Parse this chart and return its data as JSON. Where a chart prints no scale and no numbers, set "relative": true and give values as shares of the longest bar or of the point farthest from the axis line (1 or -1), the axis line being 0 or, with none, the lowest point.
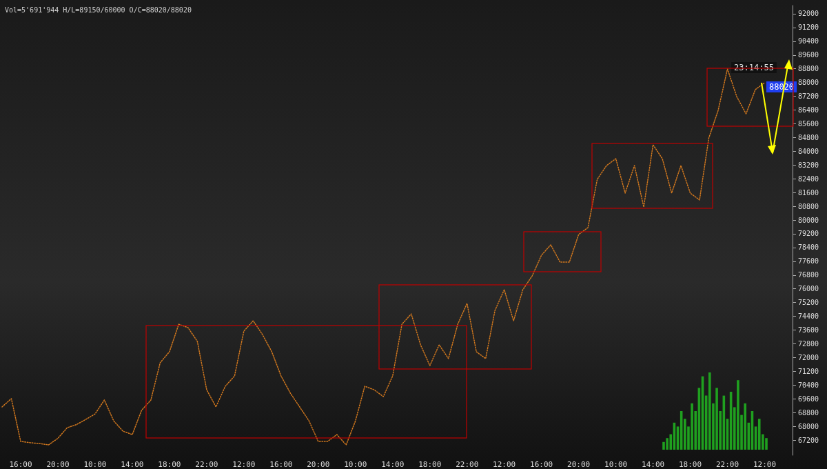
{
  "chart_data": [
    {
      "type": "line",
      "subtitle": "Vol=5'691'944 H/L=89150/60000 O/C=88020/88020",
      "annotations": [
        "23:14:55",
        "88020"
      ],
      "ylim": [
        66320,
        92480
      ],
      "categories": [
        null,
        null,
        "16:00",
        null,
        null,
        null,
        "20:00",
        null,
        null,
        null,
        "10:00",
        null,
        null,
        null,
        "14:00",
        null,
        null,
        null,
        "18:00",
        null,
        null,
        null,
        "22:00",
        null,
        null,
        null,
        "12:00",
        null,
        null,
        null,
        "16:00",
        null,
        null,
        null,
        "20:00",
        null,
        null,
        null,
        "10:00",
        null,
        null,
        null,
        "14:00",
        null,
        null,
        null,
        "18:00",
        null,
        null,
        null,
        "22:00",
        null,
        null,
        null,
        "12:00",
        null,
        null,
        null,
        "16:00",
        null,
        null,
        null,
        "20:00",
        null,
        null,
        null,
        "10:00",
        null,
        null,
        null,
        "14:00",
        null,
        null,
        null,
        "18:00",
        null,
        null,
        null,
        "22:00",
        null,
        null,
        null,
        "12:00",
        null,
        null,
        null
      ],
      "yticks": [
        67200,
        68000,
        68800,
        69600,
        70400,
        71200,
        72000,
        72800,
        73600,
        74400,
        75200,
        76000,
        76800,
        77600,
        78400,
        79200,
        80000,
        80800,
        81600,
        82400,
        83200,
        84000,
        84800,
        85600,
        86400,
        87200,
        88000,
        88800,
        89600,
        90400,
        91200,
        92000
      ],
      "grid": false,
      "marker": "none",
      "line_style": "dotted",
      "series": [
        {
          "color": "#d2781e",
          "values": [
            69130,
            69610,
            67120,
            67050,
            67000,
            66920,
            67300,
            67920,
            68100,
            68400,
            68720,
            69530,
            68320,
            67720,
            67520,
            68930,
            69530,
            71700,
            72340,
            73940,
            73740,
            72940,
            70130,
            69130,
            70330,
            70930,
            73540,
            74140,
            73340,
            72340,
            70930,
            69930,
            69130,
            68320,
            67120,
            67120,
            67520,
            66920,
            68320,
            70330,
            70130,
            69730,
            70930,
            73940,
            74540,
            72740,
            71530,
            72740,
            71940,
            73940,
            75150,
            72340,
            71940,
            74740,
            75950,
            74140,
            75950,
            76750,
            77950,
            78560,
            77550,
            77550,
            79160,
            79560,
            82370,
            83170,
            83570,
            81570,
            83170,
            80760,
            84380,
            83570,
            81570,
            83170,
            81570,
            81170,
            84780,
            86380,
            88790,
            87180,
            86180,
            87590,
            87990,
            null,
            null,
            null
          ]
        }
      ]
    },
    {
      "type": "bar",
      "relative": true,
      "categories": [
        null,
        null,
        null,
        null,
        null,
        null,
        null,
        null,
        null,
        null,
        null,
        null,
        null,
        null,
        null,
        null,
        null,
        null,
        null,
        null,
        null,
        null,
        null,
        null,
        null,
        null,
        null,
        null,
        null,
        null
      ],
      "series": [
        {
          "color": "#1fa01f",
          "values": [
            0.1,
            0.15,
            0.2,
            0.35,
            0.3,
            0.5,
            0.4,
            0.3,
            0.6,
            0.5,
            0.8,
            0.95,
            0.7,
            1,
            0.6,
            0.8,
            0.5,
            0.7,
            0.4,
            0.75,
            0.55,
            0.9,
            0.45,
            0.6,
            0.35,
            0.5,
            0.3,
            0.4,
            0.2,
            0.15
          ]
        }
      ]
    }
  ]
}
